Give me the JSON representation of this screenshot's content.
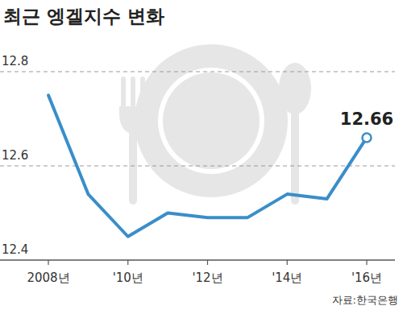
{
  "chart_data": {
    "type": "line",
    "title": "최근 엥겔지수 변화",
    "source": "자료:한국은행",
    "categories": [
      "2008년",
      null,
      "'10년",
      null,
      "'12년",
      null,
      "'14년",
      null,
      "'16년"
    ],
    "values": [
      12.75,
      12.54,
      12.45,
      12.5,
      12.49,
      12.49,
      12.54,
      12.53,
      12.66
    ],
    "value_labels": [
      null,
      null,
      null,
      null,
      null,
      null,
      null,
      null,
      "12.66"
    ],
    "color": "#3a8ec9",
    "ylim": [
      12.4,
      12.8
    ],
    "yticks": [
      12.4,
      12.6,
      12.8
    ],
    "grid": true
  }
}
